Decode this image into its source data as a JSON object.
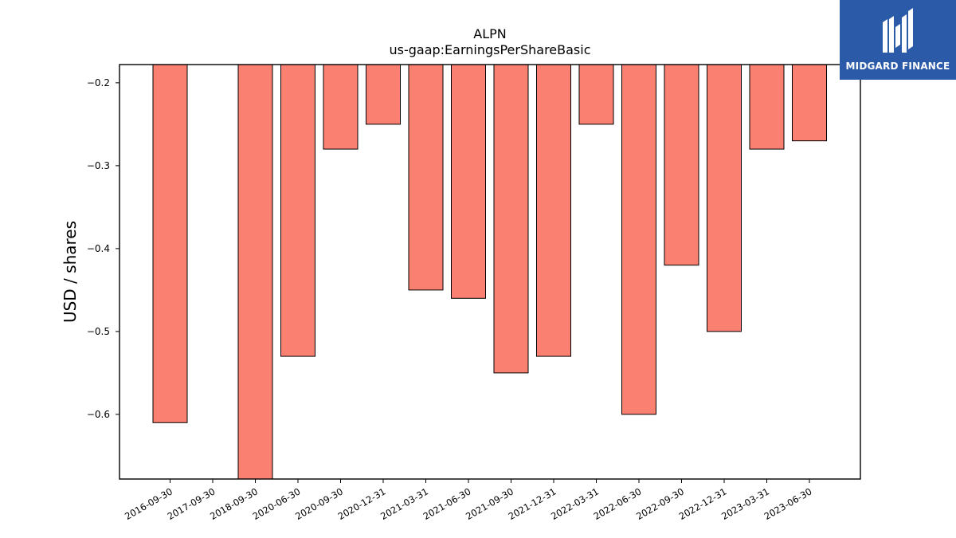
{
  "brand": {
    "name": "MIDGARD FINANCE",
    "color": "#2b5aa8",
    "icon": "midgard-m-logo-icon"
  },
  "chart_data": {
    "type": "bar",
    "title": "ALPN",
    "subtitle": "us-gaap:EarningsPerShareBasic",
    "ylabel": "USD / shares",
    "xlabel": "",
    "categories": [
      "2016-09-30",
      "2017-09-30",
      "2018-09-30",
      "2020-06-30",
      "2020-09-30",
      "2020-12-31",
      "2021-03-31",
      "2021-06-30",
      "2021-09-30",
      "2021-12-31",
      "2022-03-31",
      "2022-06-30",
      "2022-09-30",
      "2022-12-31",
      "2023-03-31",
      "2023-06-30"
    ],
    "values": [
      -0.61,
      null,
      -0.69,
      -0.53,
      -0.28,
      -0.25,
      -0.45,
      -0.46,
      -0.55,
      -0.53,
      -0.25,
      -0.6,
      -0.42,
      -0.5,
      -0.28,
      -0.27
    ],
    "ylim": [
      -0.678,
      -0.178
    ],
    "yticks": [
      -0.2,
      -0.3,
      -0.4,
      -0.5,
      -0.6
    ],
    "ytick_labels": [
      "−0.2",
      "−0.3",
      "−0.4",
      "−0.5",
      "−0.6"
    ],
    "bar_color": "#fa8072",
    "edge_color": "#000000",
    "grid": false,
    "legend": "none"
  }
}
